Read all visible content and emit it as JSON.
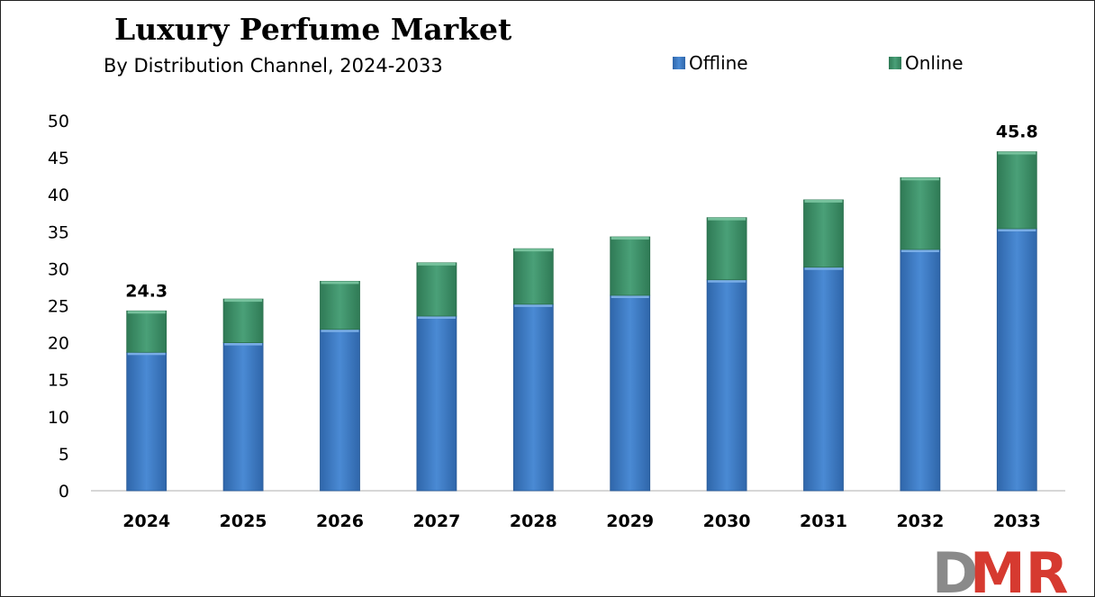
{
  "chart_data": {
    "type": "bar",
    "stacked": true,
    "title": "Luxury Perfume Market",
    "subtitle": "By Distribution Channel, 2024-2033",
    "xlabel": "",
    "ylabel": "",
    "categories": [
      "2024",
      "2025",
      "2026",
      "2027",
      "2028",
      "2029",
      "2030",
      "2031",
      "2032",
      "2033"
    ],
    "series": [
      {
        "name": "Offline",
        "color": "#3a78c2",
        "values": [
          18.7,
          20.0,
          21.8,
          23.6,
          25.2,
          26.4,
          28.5,
          30.2,
          32.6,
          35.4
        ]
      },
      {
        "name": "Online",
        "color": "#3a8c64",
        "values": [
          5.6,
          5.9,
          6.5,
          7.2,
          7.5,
          7.9,
          8.4,
          9.1,
          9.7,
          10.4
        ]
      }
    ],
    "totals_labels": {
      "2024": "24.3",
      "2033": "45.8"
    },
    "ylim": [
      0,
      50
    ],
    "yticks": [
      0,
      5,
      10,
      15,
      20,
      25,
      30,
      35,
      40,
      45,
      50
    ],
    "legend_position": "top-right",
    "grid": false
  },
  "logo": {
    "text": "DMR",
    "color_d": "#8a8a8a",
    "color_mr": "#d63a30"
  }
}
